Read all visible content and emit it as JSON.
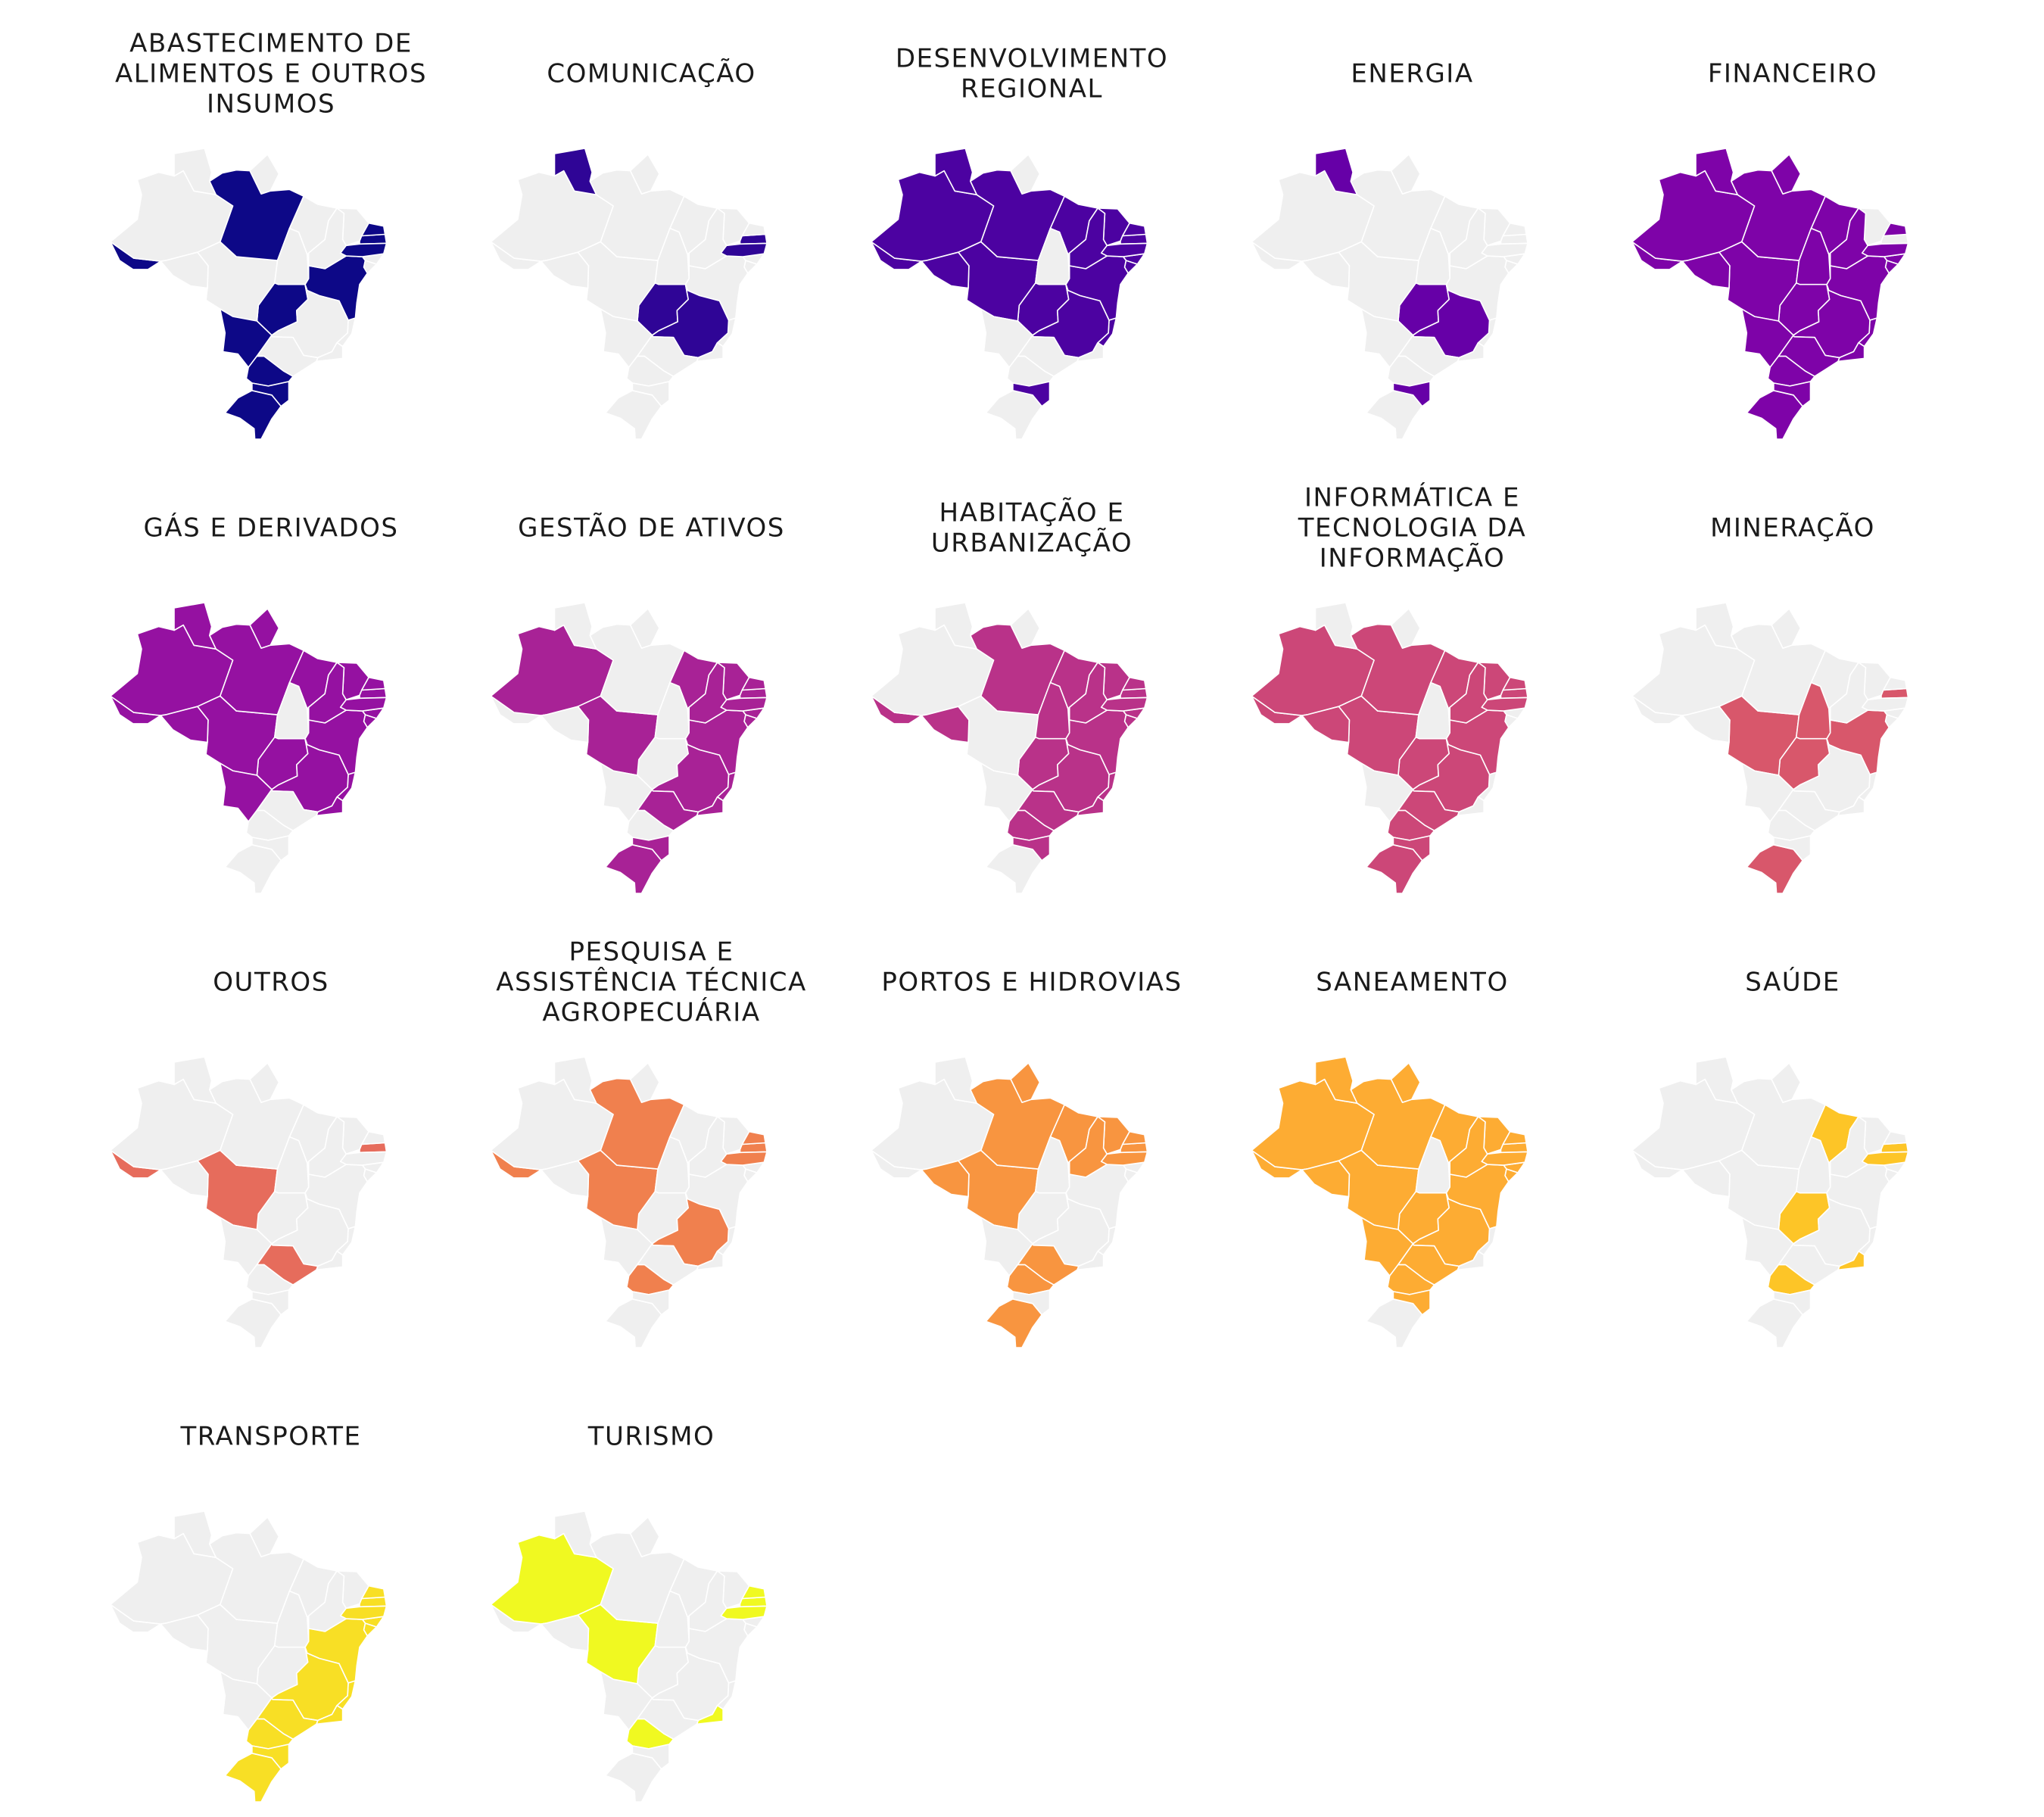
{
  "panels": [
    {
      "title": [
        "ABASTECIMENTO DE",
        "ALIMENTOS E OUTROS",
        "INSUMOS"
      ],
      "color": "#0d0887",
      "highlighted": [
        1,
        0,
        0,
        0,
        1,
        0,
        0,
        1,
        0,
        0,
        1,
        0,
        1,
        1,
        1,
        1,
        0,
        0,
        1,
        1,
        0,
        0,
        1,
        0,
        0,
        0
      ]
    },
    {
      "title": [
        "COMUNICAÇÃO"
      ],
      "color": "#2f0596",
      "highlighted": [
        0,
        0,
        0,
        0,
        0,
        0,
        0,
        1,
        0,
        0,
        0,
        1,
        0,
        1,
        0,
        1,
        0,
        0,
        0,
        0,
        0,
        1,
        0,
        0,
        0,
        0
      ]
    },
    {
      "title": [
        "DESENVOLVIMENTO",
        "REGIONAL"
      ],
      "color": "#4c02a1",
      "highlighted": [
        1,
        1,
        0,
        1,
        1,
        1,
        1,
        1,
        1,
        1,
        0,
        1,
        1,
        1,
        0,
        1,
        1,
        0,
        1,
        0,
        1,
        1,
        1,
        0,
        1,
        0
      ]
    },
    {
      "title": [
        "ENERGIA"
      ],
      "color": "#6600a7",
      "highlighted": [
        0,
        0,
        0,
        0,
        0,
        0,
        0,
        1,
        0,
        0,
        0,
        1,
        0,
        0,
        0,
        0,
        0,
        0,
        0,
        0,
        0,
        1,
        1,
        0,
        0,
        0
      ]
    },
    {
      "title": [
        "FINANCEIRO"
      ],
      "color": "#7e03a8",
      "highlighted": [
        1,
        1,
        1,
        1,
        1,
        0,
        1,
        1,
        1,
        1,
        1,
        1,
        1,
        0,
        1,
        1,
        1,
        1,
        1,
        1,
        1,
        1,
        1,
        1,
        1,
        1
      ]
    },
    {
      "title": [
        "GÁS E DERIVADOS"
      ],
      "color": "#9511a1",
      "highlighted": [
        1,
        1,
        1,
        1,
        1,
        1,
        1,
        1,
        1,
        1,
        1,
        1,
        1,
        1,
        0,
        1,
        1,
        1,
        1,
        0,
        1,
        1,
        0,
        0,
        1,
        0
      ]
    },
    {
      "title": [
        "GESTÃO DE ATIVOS"
      ],
      "color": "#a82296",
      "highlighted": [
        0,
        1,
        0,
        1,
        1,
        1,
        1,
        0,
        1,
        1,
        0,
        1,
        0,
        1,
        0,
        1,
        1,
        1,
        1,
        1,
        0,
        0,
        1,
        1,
        1,
        0
      ]
    },
    {
      "title": [
        "HABITAÇÃO E",
        "URBANIZAÇÃO"
      ],
      "color": "#b93289",
      "highlighted": [
        1,
        1,
        0,
        0,
        1,
        1,
        1,
        1,
        1,
        0,
        0,
        1,
        1,
        1,
        1,
        1,
        1,
        1,
        1,
        0,
        1,
        0,
        1,
        1,
        1,
        1
      ]
    },
    {
      "title": [
        "INFORMÁTICA E",
        "TECNOLOGIA DA",
        "INFORMAÇÃO"
      ],
      "color": "#cc4778",
      "highlighted": [
        1,
        0,
        0,
        1,
        1,
        1,
        0,
        1,
        1,
        1,
        0,
        1,
        1,
        1,
        1,
        1,
        1,
        0,
        1,
        1,
        1,
        0,
        1,
        1,
        0,
        0
      ]
    },
    {
      "title": [
        "MINERAÇÃO"
      ],
      "color": "#d8576b",
      "highlighted": [
        0,
        0,
        0,
        0,
        1,
        0,
        0,
        1,
        0,
        1,
        0,
        0,
        0,
        1,
        0,
        0,
        0,
        0,
        0,
        1,
        0,
        0,
        0,
        0,
        0,
        1
      ]
    },
    {
      "title": [
        "OUTROS"
      ],
      "color": "#e66c5c",
      "highlighted": [
        1,
        0,
        0,
        0,
        0,
        0,
        0,
        0,
        0,
        1,
        0,
        0,
        0,
        1,
        0,
        0,
        0,
        0,
        0,
        0,
        0,
        0,
        0,
        1,
        0,
        0
      ]
    },
    {
      "title": [
        "PESQUISA E",
        "ASSISTÊNCIA TÉCNICA",
        "AGROPECUÁRIA"
      ],
      "color": "#f0804e",
      "highlighted": [
        1,
        0,
        0,
        0,
        0,
        0,
        0,
        0,
        0,
        1,
        0,
        1,
        1,
        1,
        1,
        1,
        0,
        0,
        1,
        0,
        0,
        0,
        0,
        0,
        0,
        0
      ]
    },
    {
      "title": [
        "PORTOS E HIDROVIAS"
      ],
      "color": "#f89540",
      "highlighted": [
        0,
        0,
        1,
        0,
        0,
        1,
        0,
        0,
        1,
        1,
        0,
        0,
        1,
        1,
        1,
        1,
        1,
        0,
        1,
        1,
        1,
        0,
        0,
        1,
        0,
        0
      ]
    },
    {
      "title": [
        "SANEAMENTO"
      ],
      "color": "#fdac33",
      "highlighted": [
        1,
        1,
        1,
        1,
        1,
        1,
        0,
        1,
        1,
        1,
        1,
        1,
        1,
        1,
        1,
        1,
        1,
        0,
        1,
        0,
        1,
        1,
        1,
        1,
        1,
        0
      ]
    },
    {
      "title": [
        "SAÚDE"
      ],
      "color": "#fdc527",
      "highlighted": [
        0,
        0,
        0,
        0,
        0,
        0,
        0,
        1,
        1,
        0,
        0,
        0,
        0,
        1,
        1,
        1,
        0,
        1,
        0,
        0,
        0,
        0,
        0,
        0,
        0,
        0
      ]
    },
    {
      "title": [
        "TRANSPORTE"
      ],
      "color": "#f8df25",
      "highlighted": [
        0,
        1,
        0,
        0,
        1,
        0,
        1,
        0,
        0,
        0,
        0,
        1,
        0,
        1,
        1,
        1,
        0,
        1,
        1,
        1,
        0,
        0,
        1,
        1,
        1,
        0
      ]
    },
    {
      "title": [
        "TURISMO"
      ],
      "color": "#f0f921",
      "highlighted": [
        0,
        0,
        0,
        1,
        0,
        0,
        0,
        0,
        0,
        1,
        0,
        0,
        0,
        1,
        1,
        1,
        0,
        1,
        1,
        0,
        0,
        0,
        0,
        0,
        0,
        0
      ]
    }
  ]
}
